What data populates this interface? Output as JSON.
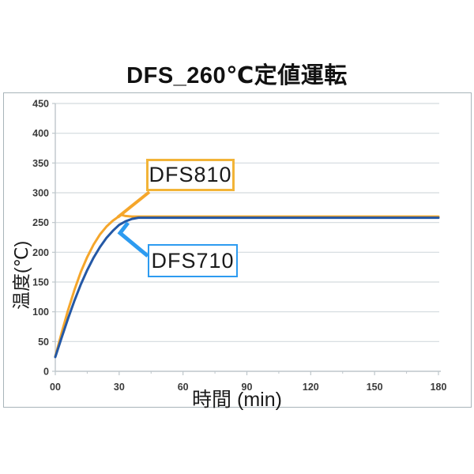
{
  "title": "DFS_260℃定値運転",
  "chart_data": {
    "type": "line",
    "title": "DFS_260℃定値運転",
    "xlabel": "時間 (min)",
    "ylabel": "温度(℃)",
    "xlim": [
      0,
      180
    ],
    "ylim": [
      0,
      450
    ],
    "x_tick_values": [
      0,
      30,
      60,
      90,
      120,
      150,
      180
    ],
    "x_tick_labels": [
      "00",
      "30",
      "60",
      "90",
      "120",
      "150",
      "180"
    ],
    "x_minor_tick_values": [
      15,
      45,
      75,
      105,
      135,
      165
    ],
    "y_tick_values": [
      0,
      50,
      100,
      150,
      200,
      250,
      300,
      350,
      400,
      450
    ],
    "grid": "horizontal-only",
    "legend_position": "callout-boxes-inside-plot",
    "series": [
      {
        "name": "DFS810",
        "color": "#F5A62B",
        "points": [
          [
            0,
            25
          ],
          [
            3,
            65
          ],
          [
            6,
            103
          ],
          [
            9,
            137
          ],
          [
            12,
            167
          ],
          [
            15,
            192
          ],
          [
            18,
            213
          ],
          [
            21,
            230
          ],
          [
            24,
            243
          ],
          [
            27,
            253
          ],
          [
            29,
            258
          ],
          [
            30,
            261
          ],
          [
            31,
            263
          ],
          [
            33,
            261
          ],
          [
            36,
            260
          ],
          [
            40,
            260
          ],
          [
            60,
            260
          ],
          [
            90,
            260
          ],
          [
            120,
            260
          ],
          [
            150,
            260
          ],
          [
            180,
            260
          ]
        ]
      },
      {
        "name": "DFS710",
        "color": "#2458A5",
        "points": [
          [
            0,
            24
          ],
          [
            3,
            57
          ],
          [
            6,
            89
          ],
          [
            9,
            119
          ],
          [
            12,
            146
          ],
          [
            15,
            170
          ],
          [
            18,
            191
          ],
          [
            21,
            209
          ],
          [
            24,
            224
          ],
          [
            27,
            236
          ],
          [
            30,
            246
          ],
          [
            33,
            252
          ],
          [
            36,
            256
          ],
          [
            39,
            258
          ],
          [
            45,
            258
          ],
          [
            60,
            258
          ],
          [
            90,
            258
          ],
          [
            120,
            258
          ],
          [
            150,
            258
          ],
          [
            180,
            258
          ]
        ]
      }
    ]
  },
  "annotations": {
    "dfs810": {
      "label": "DFS810",
      "border_color": "#F2B438",
      "line_color": "#F5A62B"
    },
    "dfs710": {
      "label": "DFS710",
      "border_color": "#2D9BF0",
      "line_color": "#2D9BF0"
    }
  },
  "colors": {
    "background": "#FFFFFF",
    "grid": "#D3DADE",
    "axis": "#BEC6CB",
    "tick_text": "#3A3A3A",
    "title_text": "#111111",
    "frame_border": "#A8B4BA"
  }
}
